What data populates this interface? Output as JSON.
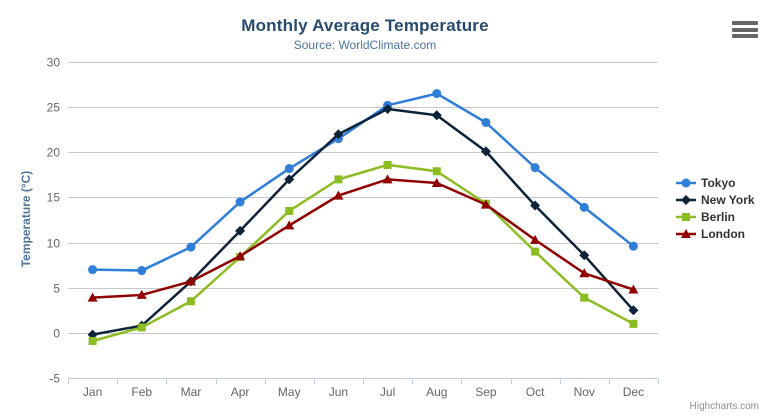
{
  "chart_data": {
    "type": "line",
    "title": "Monthly Average Temperature",
    "subtitle": "Source: WorldClimate.com",
    "categories": [
      "Jan",
      "Feb",
      "Mar",
      "Apr",
      "May",
      "Jun",
      "Jul",
      "Aug",
      "Sep",
      "Oct",
      "Nov",
      "Dec"
    ],
    "series": [
      {
        "name": "Tokyo",
        "color": "#2f7ed8",
        "marker": "circle",
        "values": [
          7.0,
          6.9,
          9.5,
          14.5,
          18.2,
          21.5,
          25.2,
          26.5,
          23.3,
          18.3,
          13.9,
          9.6
        ]
      },
      {
        "name": "New York",
        "color": "#0d233a",
        "marker": "diamond",
        "values": [
          -0.2,
          0.8,
          5.7,
          11.3,
          17.0,
          22.0,
          24.8,
          24.1,
          20.1,
          14.1,
          8.6,
          2.5
        ]
      },
      {
        "name": "Berlin",
        "color": "#8bbc21",
        "marker": "square",
        "values": [
          -0.9,
          0.6,
          3.5,
          8.4,
          13.5,
          17.0,
          18.6,
          17.9,
          14.3,
          9.0,
          3.9,
          1.0
        ]
      },
      {
        "name": "London",
        "color": "#910000",
        "marker": "triangle",
        "values": [
          3.9,
          4.2,
          5.7,
          8.5,
          11.9,
          15.2,
          17.0,
          16.6,
          14.2,
          10.3,
          6.6,
          4.8
        ]
      }
    ],
    "xlabel": "",
    "ylabel": "Temperature (°C)",
    "ylim": [
      -5,
      30
    ],
    "ytick_interval": 5,
    "grid": true,
    "legend_position": "right",
    "grid_color": "#c8c8c8",
    "axis_line_color": "#c0d0e0",
    "axis_label_color": "#666666",
    "credits": "Highcharts.com"
  },
  "icons": {
    "export_menu": "hamburger-icon"
  }
}
